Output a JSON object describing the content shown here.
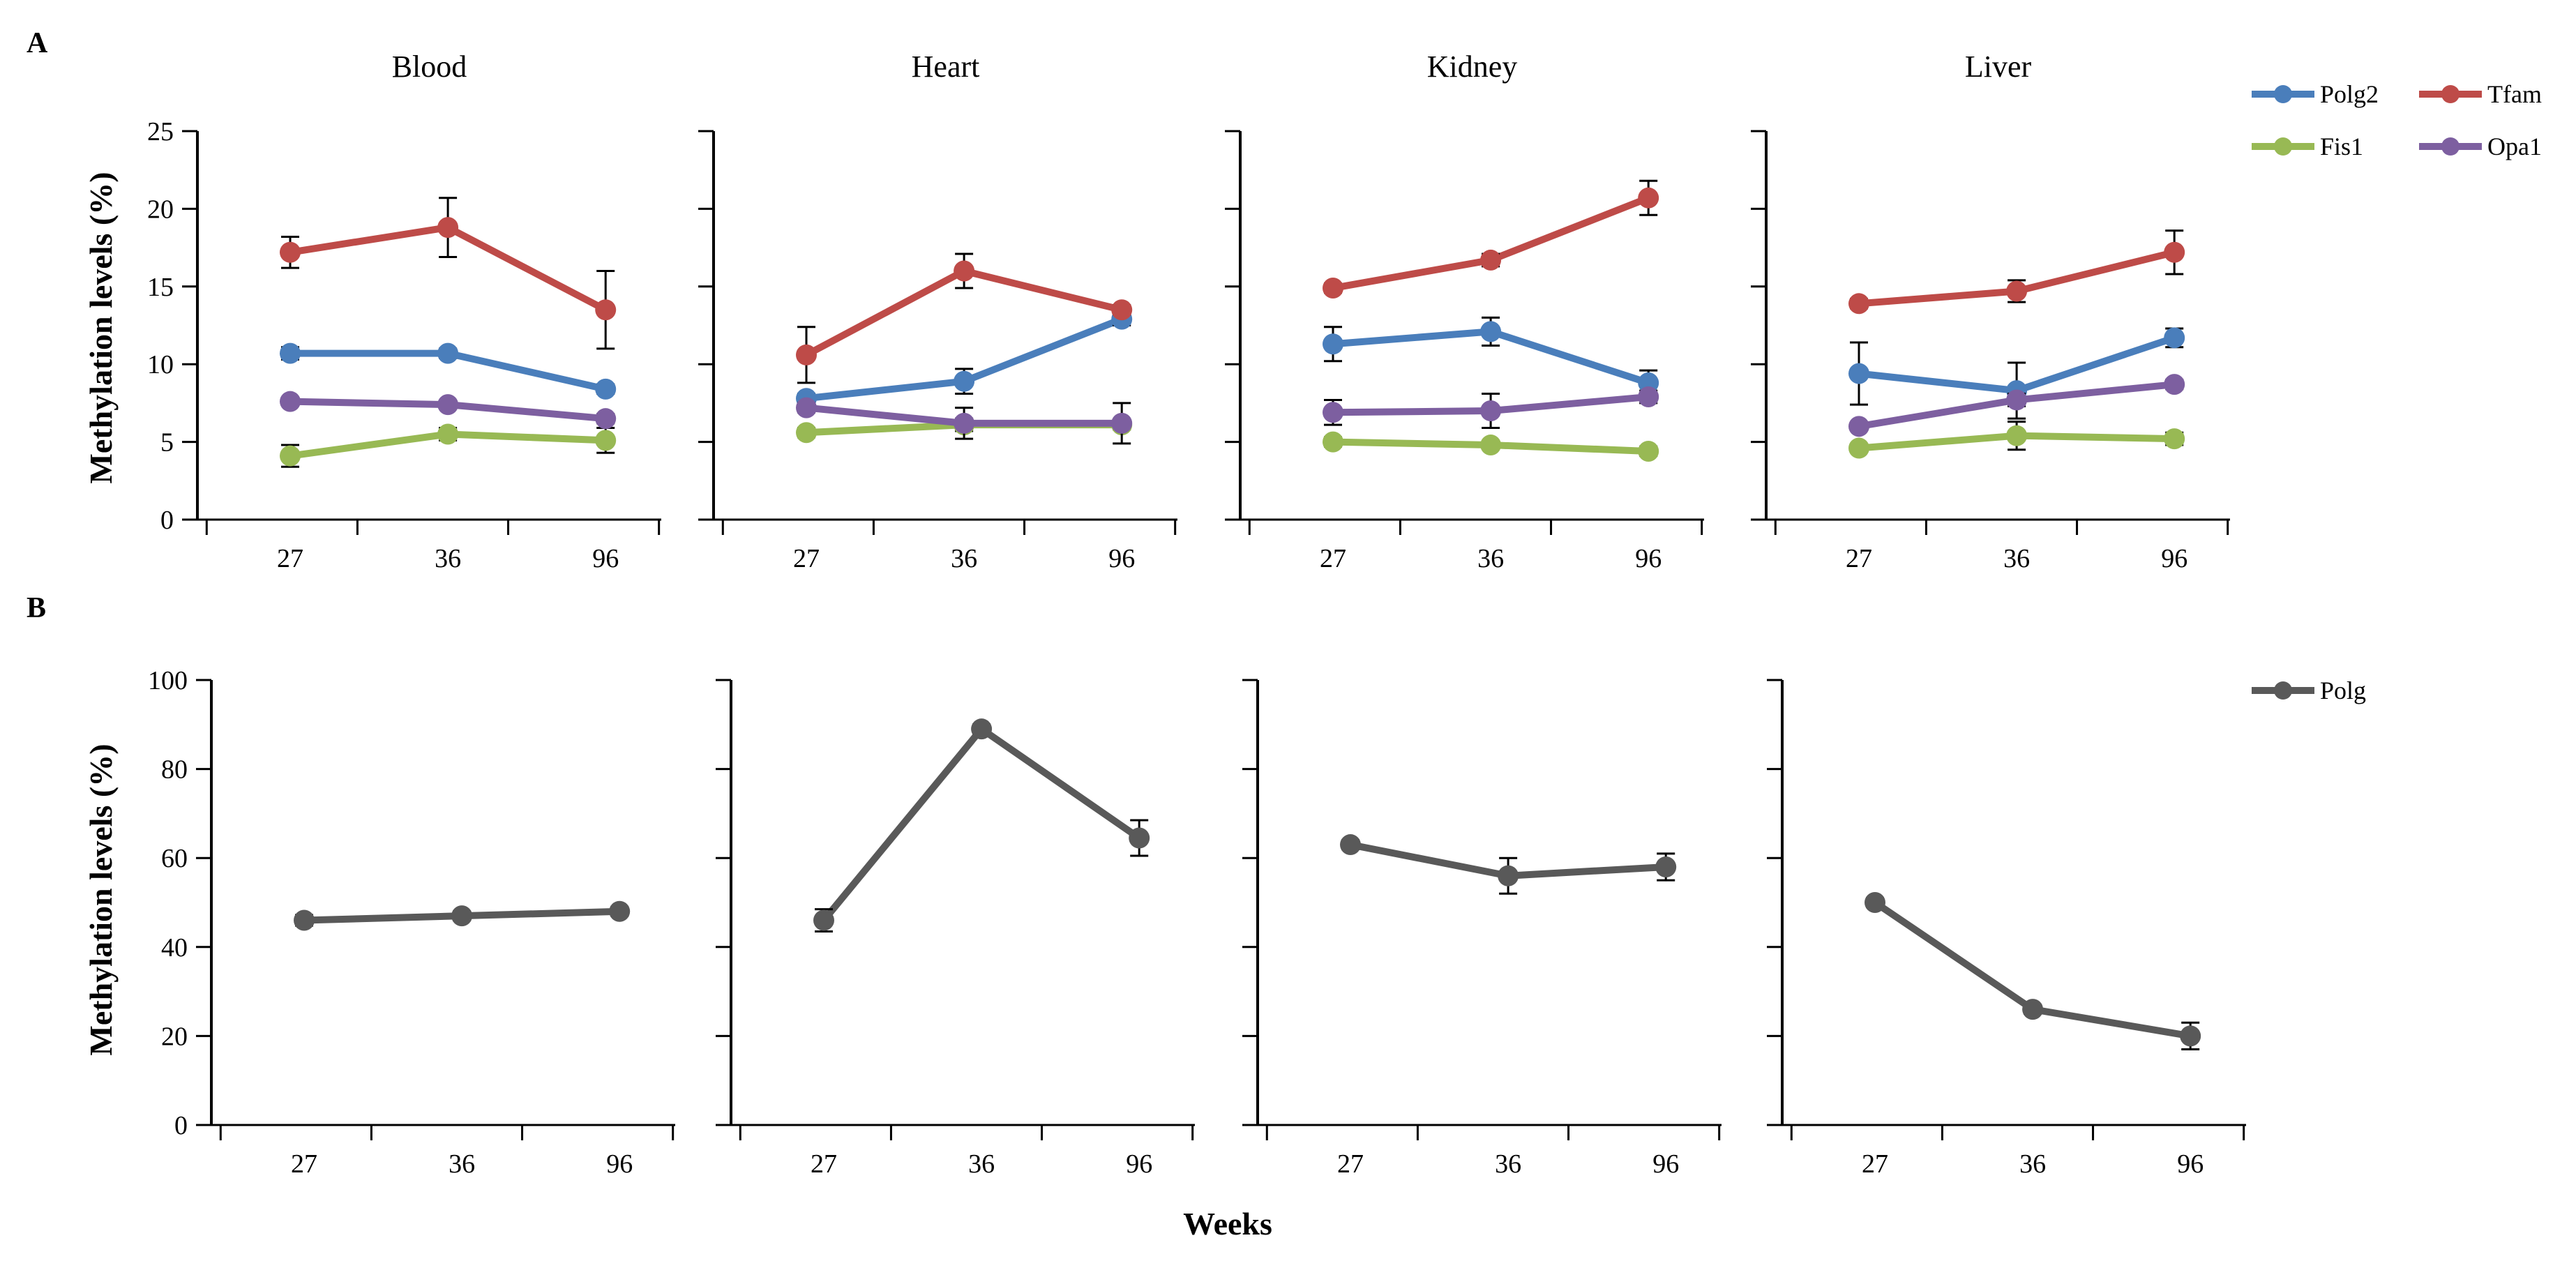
{
  "figure": {
    "weeks_label": "Weeks"
  },
  "colors": {
    "Polg2": "#4a7ebb",
    "Tfam": "#be4b48",
    "Fis1": "#98b954",
    "Opa1": "#7d5fa0",
    "Polg": "#595959"
  },
  "chart_data": [
    {
      "panel": "A",
      "type": "line",
      "ylabel": "Methylation levels (%)",
      "ylim": [
        0,
        25
      ],
      "yticks": [
        "0",
        "5",
        "10",
        "15",
        "20",
        "25"
      ],
      "categories": [
        "27",
        "36",
        "96"
      ],
      "legend": {
        "placement": "right",
        "entries": [
          "Polg2",
          "Tfam",
          "Fis1",
          "Opa1"
        ]
      },
      "subplots": [
        {
          "title": "Blood",
          "series": [
            {
              "name": "Polg2",
              "values": [
                10.7,
                10.7,
                8.4
              ],
              "errors": [
                0.4,
                0.3,
                0.3
              ]
            },
            {
              "name": "Tfam",
              "values": [
                17.2,
                18.8,
                13.5
              ],
              "errors": [
                1.0,
                1.9,
                2.5
              ]
            },
            {
              "name": "Fis1",
              "values": [
                4.1,
                5.5,
                5.1
              ],
              "errors": [
                0.7,
                0.4,
                0.8
              ]
            },
            {
              "name": "Opa1",
              "values": [
                7.6,
                7.4,
                6.5
              ],
              "errors": [
                0.2,
                0.2,
                0.3
              ]
            }
          ]
        },
        {
          "title": "Heart",
          "series": [
            {
              "name": "Polg2",
              "values": [
                7.8,
                8.9,
                12.9
              ],
              "errors": [
                0.3,
                0.8,
                0.4
              ]
            },
            {
              "name": "Tfam",
              "values": [
                10.6,
                16.0,
                13.5
              ],
              "errors": [
                1.8,
                1.1,
                0.3
              ]
            },
            {
              "name": "Fis1",
              "values": [
                5.6,
                6.1,
                6.1
              ],
              "errors": [
                0.3,
                0.4,
                0.3
              ]
            },
            {
              "name": "Opa1",
              "values": [
                7.2,
                6.2,
                6.2
              ],
              "errors": [
                0.3,
                1.0,
                1.3
              ]
            }
          ]
        },
        {
          "title": "Kidney",
          "series": [
            {
              "name": "Polg2",
              "values": [
                11.3,
                12.1,
                8.8
              ],
              "errors": [
                1.1,
                0.9,
                0.8
              ]
            },
            {
              "name": "Tfam",
              "values": [
                14.9,
                16.7,
                20.7
              ],
              "errors": [
                0.3,
                0.4,
                1.1
              ]
            },
            {
              "name": "Fis1",
              "values": [
                5.0,
                4.8,
                4.4
              ],
              "errors": [
                0.3,
                0.2,
                0.3
              ]
            },
            {
              "name": "Opa1",
              "values": [
                6.9,
                7.0,
                7.9
              ],
              "errors": [
                0.8,
                1.1,
                0.4
              ]
            }
          ]
        },
        {
          "title": "Liver",
          "series": [
            {
              "name": "Polg2",
              "values": [
                9.4,
                8.3,
                11.7
              ],
              "errors": [
                2.0,
                1.8,
                0.6
              ]
            },
            {
              "name": "Tfam",
              "values": [
                13.9,
                14.7,
                17.2
              ],
              "errors": [
                0.3,
                0.7,
                1.4
              ]
            },
            {
              "name": "Fis1",
              "values": [
                4.6,
                5.4,
                5.2
              ],
              "errors": [
                0.2,
                0.9,
                0.4
              ]
            },
            {
              "name": "Opa1",
              "values": [
                6.0,
                7.7,
                8.7
              ],
              "errors": [
                0.2,
                0.4,
                0.3
              ]
            }
          ]
        }
      ]
    },
    {
      "panel": "B",
      "type": "line",
      "ylabel": "Methylation levels (%)",
      "ylim": [
        0,
        100
      ],
      "yticks": [
        "0",
        "20",
        "40",
        "60",
        "80",
        "100"
      ],
      "categories": [
        "27",
        "36",
        "96"
      ],
      "legend": {
        "placement": "right",
        "entries": [
          "Polg"
        ]
      },
      "subplots": [
        {
          "title": "",
          "series": [
            {
              "name": "Polg",
              "values": [
                46.0,
                47.0,
                48.0
              ],
              "errors": [
                1.2,
                1.0,
                1.0
              ]
            }
          ]
        },
        {
          "title": "",
          "series": [
            {
              "name": "Polg",
              "values": [
                46.0,
                89.0,
                64.5
              ],
              "errors": [
                2.5,
                1.0,
                4.0
              ]
            }
          ]
        },
        {
          "title": "",
          "series": [
            {
              "name": "Polg",
              "values": [
                63.0,
                56.0,
                58.0
              ],
              "errors": [
                1.0,
                4.0,
                3.0
              ]
            }
          ]
        },
        {
          "title": "",
          "series": [
            {
              "name": "Polg",
              "values": [
                50.0,
                26.0,
                20.0
              ],
              "errors": [
                1.0,
                1.0,
                3.0
              ]
            }
          ]
        }
      ]
    }
  ]
}
